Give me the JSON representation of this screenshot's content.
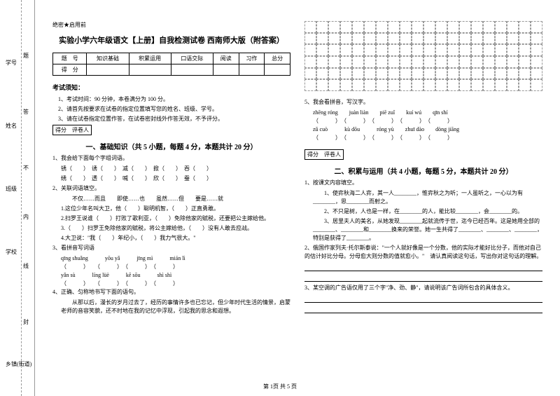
{
  "sideMargin": {
    "labels": [
      "乡镇(街道)",
      "学校",
      "班级",
      "姓名",
      "学号"
    ],
    "markers": [
      "封",
      "线",
      "内",
      "不",
      "答",
      "题"
    ]
  },
  "confidential": "绝密★启用前",
  "title": "实验小学六年级语文【上册】自我检测试卷 西南师大版（附答案）",
  "scoreTable": {
    "headers": [
      "题　号",
      "知识基础",
      "积累运用",
      "口语交际",
      "阅读",
      "习作",
      "总分"
    ],
    "row2": "得　分"
  },
  "notice": {
    "title": "考试须知：",
    "items": [
      "1、考试时间：90 分钟，本卷满分为 100 分。",
      "2、请首先按要求在试卷的指定位置填写您的姓名、班级、学号。",
      "3、请在试卷指定位置作答，在试卷密封线外作答无效，不予评分。"
    ]
  },
  "sectionBox": "得分　评卷人",
  "section1": {
    "title": "一、基础知识（共 5 小题，每题 4 分，本题共计 20 分）",
    "q1": "1、我会给下面每个字组词语。",
    "q1_chars": "锈（　　）　诱（　　）　减（　　）　掀（　　）　吞（　　）",
    "q1_chars2": "绣（　　）　透（　　）　喊（　　）　欣（　　）　蚕（　　）",
    "q2": "2、关联词语填空。",
    "q2_sub1": "　　不仅……而且　　即使……也　　虽然……但　　要是……就",
    "q2_sub2": "1.这位少年名叫大卫，他（　　）聪明机智，（　　）正直勇敢。",
    "q2_sub3": "2.扫罗王说谁（　　）打败了歌利亚，（　　）免除他家的赋税，还要把公主嫁给他。",
    "q2_sub4": "3.（　　）扫罗王免除他家的赋税，将公主嫁给他，（　　）没有人敢去应战。",
    "q2_sub5": "4.大卫说：\"我（　　）年纪小，（　　）我力气很大。\"",
    "q3": "3、看拼音写词语",
    "q3_py1": "qīng shuǎng　　　yōu yǎ　　　jīng mì　　　mián lì",
    "q3_blank1": "（　　　）　　（　　　）　（　　　）　（　　　）",
    "q3_py2": "yǎn sù　　　líng lüè　　　kē sōu　　　shì shì",
    "q3_blank2": "（　　　）　　（　　　）　（　　　）　（　　　）",
    "q4": "4、正确、匀称地书写下面的语句。",
    "q4_text": "　　从那以后，漫长的岁月过去了，经历的事情许多也已忘记，但少年时代生活的情景，启蒙老师的音容笑貌，还不时地在我的记忆中浮现，引起我的思念和遐想。"
  },
  "rightCol": {
    "q5": "5、我会看拼音，写汉字。",
    "q5_py1": "zhēng róng　　juàn liàn　　piē zuǐ　　kuí wú　　qīn shí",
    "q5_blank1": "（　　　）　（　　　）　（　　　）　（　　　）　（　　　）",
    "q5_py2": "zǔ cuò　　　kù dōu　　　róng yù　　zhuī dào　　dòng jiāng",
    "q5_blank2": "（　　　）　（　　　）　（　　　）　（　　　）　（　　　）"
  },
  "section2": {
    "title": "二、积累与运用（共 4 小题，每题 5 分，本题共计 20 分）",
    "q1": "1、按课文内容填空。",
    "q1_sub1": "　　1、使弈秋海二人弈，其一人________，惟弈秋之为听；一人虽听之，一心以为有________，思________而射之。",
    "q1_sub2": "　　2、不只是树，人也是一样，在________的人，能比较________，会________的。",
    "q1_sub3": "　　3、居里夫人的美名，从她发现________起就流传于世，迄今已经百年。这是她用全部的________、________和________换来的荣誉。她一生共得了________、________、________，特别是获得了________。",
    "q2": "2、俄国作家列夫·托尔斯泰说：\"一个人就好像是一个分数，他的实际才能好比分子，而他对自己的估计好比分母。分母愈大则分数的值就愈小。\"　请认真阅读这句话，写出你对这句话的理解。",
    "q3": "3、某空调的广告语仅用了三个字\"净、劲、静\"，请说明该广告词所包含的具体含义。"
  },
  "footer": "第 1页 共 5 页"
}
